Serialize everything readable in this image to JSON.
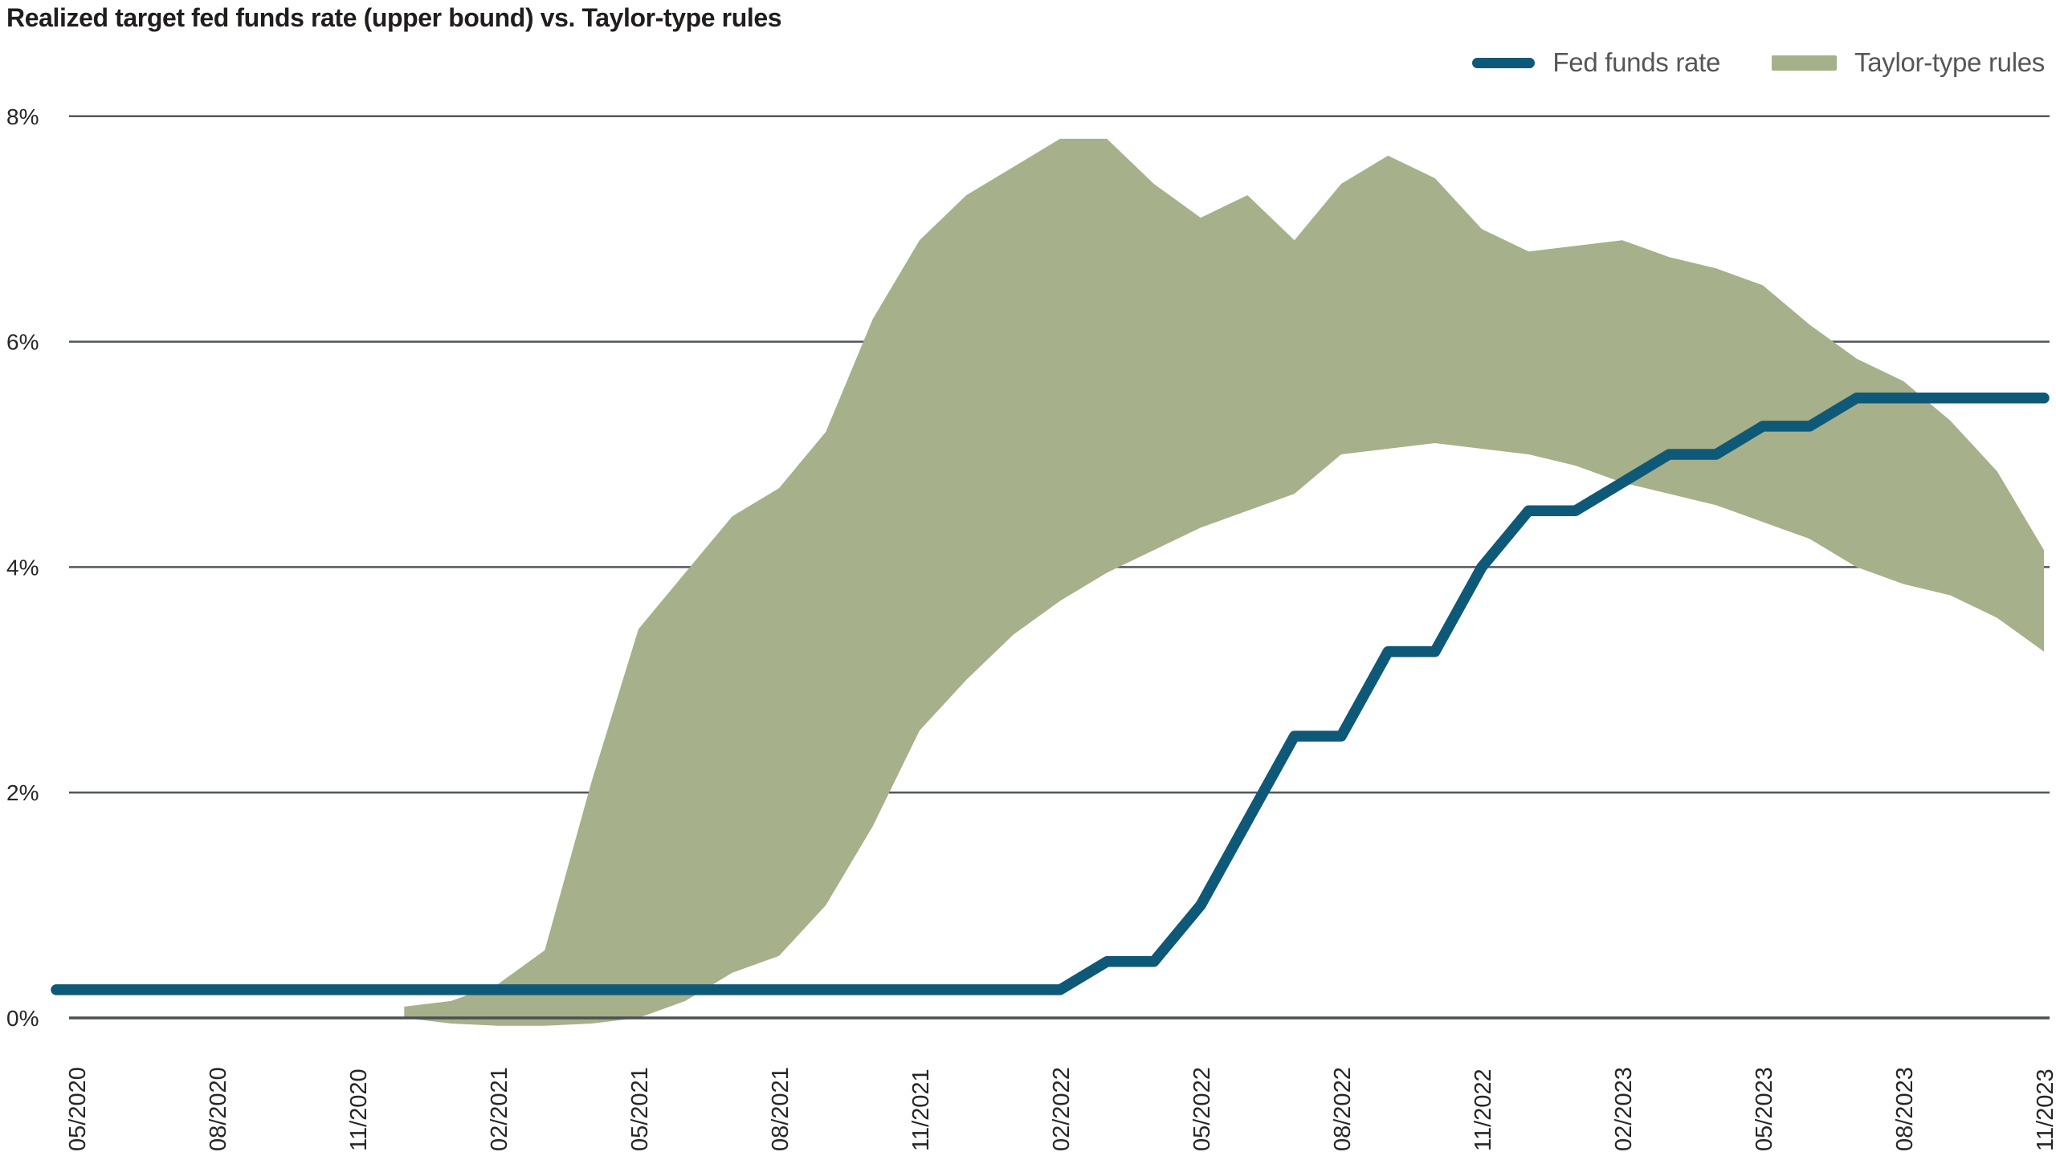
{
  "title": "Realized target fed funds rate (upper bound) vs. Taylor-type rules",
  "legend": {
    "items": [
      {
        "label": "Fed funds rate",
        "color": "#0f5978",
        "swatch": "line"
      },
      {
        "label": "Taylor-type rules",
        "color": "#a6b08a",
        "swatch": "rect"
      }
    ]
  },
  "colors": {
    "fed_line": "#0f5978",
    "band": "#a6b08a",
    "gridline": "#53575b",
    "zero_line": "#4b5054",
    "tick_text": "#262626",
    "legend_text": "#54565a",
    "title_text": "#201d1c",
    "background": "#ffffff"
  },
  "chart_data": {
    "type": "line",
    "title": "Realized target fed funds rate (upper bound) vs. Taylor-type rules",
    "xlabel": "",
    "ylabel": "",
    "ylim": [
      -0.15,
      8.3
    ],
    "grid": "horizontal",
    "legend_position": "top-right",
    "y_ticks": [
      {
        "label": "0%",
        "value": 0
      },
      {
        "label": "2%",
        "value": 2
      },
      {
        "label": "4%",
        "value": 4
      },
      {
        "label": "6%",
        "value": 6
      },
      {
        "label": "8%",
        "value": 8
      }
    ],
    "x": [
      "05/2020",
      "06/2020",
      "07/2020",
      "08/2020",
      "09/2020",
      "10/2020",
      "11/2020",
      "12/2020",
      "01/2021",
      "02/2021",
      "03/2021",
      "04/2021",
      "05/2021",
      "06/2021",
      "07/2021",
      "08/2021",
      "09/2021",
      "10/2021",
      "11/2021",
      "12/2021",
      "01/2022",
      "02/2022",
      "03/2022",
      "04/2022",
      "05/2022",
      "06/2022",
      "07/2022",
      "08/2022",
      "09/2022",
      "10/2022",
      "11/2022",
      "12/2022",
      "01/2023",
      "02/2023",
      "03/2023",
      "04/2023",
      "05/2023",
      "06/2023",
      "07/2023",
      "08/2023",
      "09/2023",
      "10/2023",
      "11/2023"
    ],
    "x_tick_labels": [
      "05/2020",
      "08/2020",
      "11/2020",
      "02/2021",
      "05/2021",
      "08/2021",
      "11/2021",
      "02/2022",
      "05/2022",
      "08/2022",
      "11/2022",
      "02/2023",
      "05/2023",
      "08/2023",
      "11/2023"
    ],
    "x_tick_every": 3,
    "series": [
      {
        "name": "Fed funds rate",
        "type": "line",
        "values": [
          0.25,
          0.25,
          0.25,
          0.25,
          0.25,
          0.25,
          0.25,
          0.25,
          0.25,
          0.25,
          0.25,
          0.25,
          0.25,
          0.25,
          0.25,
          0.25,
          0.25,
          0.25,
          0.25,
          0.25,
          0.25,
          0.25,
          0.5,
          0.5,
          1.0,
          1.75,
          2.5,
          2.5,
          3.25,
          3.25,
          4.0,
          4.5,
          4.5,
          4.75,
          5.0,
          5.0,
          5.25,
          5.25,
          5.5,
          5.5,
          5.5,
          5.5,
          5.5
        ]
      },
      {
        "name": "Taylor-type rules",
        "type": "band",
        "lower": [
          null,
          null,
          null,
          null,
          null,
          null,
          null,
          0.0,
          -0.05,
          -0.07,
          -0.07,
          -0.05,
          0.0,
          0.15,
          0.4,
          0.55,
          1.0,
          1.7,
          2.55,
          3.0,
          3.4,
          3.7,
          3.95,
          4.15,
          4.35,
          4.5,
          4.65,
          5.0,
          5.05,
          5.1,
          5.05,
          5.0,
          4.9,
          4.75,
          4.65,
          4.55,
          4.4,
          4.25,
          4.0,
          3.85,
          3.75,
          3.55,
          3.25
        ],
        "upper": [
          null,
          null,
          null,
          null,
          null,
          null,
          null,
          0.1,
          0.15,
          0.3,
          0.6,
          2.1,
          3.45,
          3.95,
          4.45,
          4.7,
          5.2,
          6.2,
          6.9,
          7.3,
          7.55,
          7.8,
          7.8,
          7.4,
          7.1,
          7.3,
          6.9,
          7.4,
          7.65,
          7.45,
          7.0,
          6.8,
          6.85,
          6.9,
          6.75,
          6.65,
          6.5,
          6.15,
          5.85,
          5.65,
          5.3,
          4.85,
          4.15
        ]
      }
    ]
  }
}
